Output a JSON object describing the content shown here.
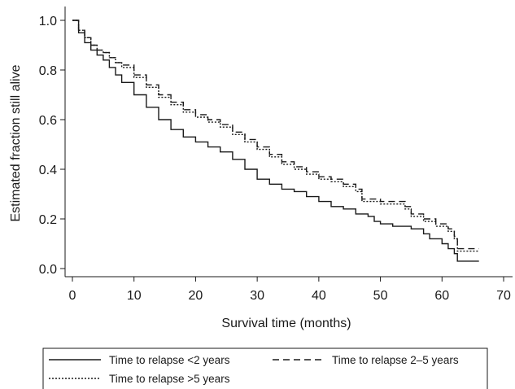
{
  "chart_data": {
    "type": "line",
    "title": "",
    "xlabel": "Survival time (months)",
    "ylabel": "Estimated fraction still alive",
    "xlim": [
      0,
      70
    ],
    "ylim": [
      0.0,
      1.0
    ],
    "x_ticks": [
      "0",
      "10",
      "20",
      "30",
      "40",
      "50",
      "60",
      "70"
    ],
    "y_ticks": [
      "0.0",
      "0.2",
      "0.4",
      "0.6",
      "0.8",
      "1.0"
    ],
    "grid": false,
    "legend_position": "bottom",
    "series": [
      {
        "name": "Time to relapse <2 years",
        "line_style": "solid",
        "color": "#1a1a1a",
        "points": [
          [
            0,
            1.0
          ],
          [
            1,
            0.95
          ],
          [
            2,
            0.91
          ],
          [
            3,
            0.88
          ],
          [
            4,
            0.86
          ],
          [
            5,
            0.84
          ],
          [
            6,
            0.81
          ],
          [
            7,
            0.78
          ],
          [
            8,
            0.75
          ],
          [
            10,
            0.7
          ],
          [
            12,
            0.65
          ],
          [
            14,
            0.6
          ],
          [
            16,
            0.56
          ],
          [
            18,
            0.53
          ],
          [
            20,
            0.51
          ],
          [
            22,
            0.49
          ],
          [
            24,
            0.47
          ],
          [
            26,
            0.44
          ],
          [
            28,
            0.4
          ],
          [
            30,
            0.36
          ],
          [
            32,
            0.34
          ],
          [
            34,
            0.32
          ],
          [
            36,
            0.31
          ],
          [
            38,
            0.29
          ],
          [
            40,
            0.27
          ],
          [
            42,
            0.25
          ],
          [
            44,
            0.24
          ],
          [
            46,
            0.22
          ],
          [
            48,
            0.21
          ],
          [
            49,
            0.19
          ],
          [
            50,
            0.18
          ],
          [
            52,
            0.17
          ],
          [
            55,
            0.16
          ],
          [
            57,
            0.14
          ],
          [
            58,
            0.12
          ],
          [
            60,
            0.1
          ],
          [
            61,
            0.08
          ],
          [
            62,
            0.06
          ],
          [
            62.5,
            0.03
          ],
          [
            66,
            0.03
          ]
        ]
      },
      {
        "name": "Time to relapse 2–5 years",
        "line_style": "dashed",
        "color": "#1a1a1a",
        "points": [
          [
            0,
            1.0
          ],
          [
            1,
            0.96
          ],
          [
            2,
            0.93
          ],
          [
            3,
            0.9
          ],
          [
            4,
            0.88
          ],
          [
            5,
            0.87
          ],
          [
            6,
            0.85
          ],
          [
            7,
            0.83
          ],
          [
            8,
            0.82
          ],
          [
            10,
            0.78
          ],
          [
            12,
            0.74
          ],
          [
            14,
            0.7
          ],
          [
            16,
            0.67
          ],
          [
            18,
            0.64
          ],
          [
            20,
            0.62
          ],
          [
            22,
            0.6
          ],
          [
            24,
            0.58
          ],
          [
            26,
            0.55
          ],
          [
            28,
            0.52
          ],
          [
            30,
            0.49
          ],
          [
            32,
            0.46
          ],
          [
            34,
            0.43
          ],
          [
            36,
            0.41
          ],
          [
            38,
            0.39
          ],
          [
            40,
            0.37
          ],
          [
            42,
            0.36
          ],
          [
            44,
            0.34
          ],
          [
            46,
            0.32
          ],
          [
            47,
            0.28
          ],
          [
            50,
            0.27
          ],
          [
            54,
            0.25
          ],
          [
            55,
            0.22
          ],
          [
            57,
            0.2
          ],
          [
            59,
            0.18
          ],
          [
            61,
            0.16
          ],
          [
            62,
            0.13
          ],
          [
            62.5,
            0.08
          ],
          [
            66,
            0.08
          ]
        ]
      },
      {
        "name": "Time to relapse >5 years",
        "line_style": "dotted",
        "color": "#1a1a1a",
        "points": [
          [
            0,
            1.0
          ],
          [
            1,
            0.96
          ],
          [
            2,
            0.93
          ],
          [
            3,
            0.9
          ],
          [
            4,
            0.88
          ],
          [
            5,
            0.87
          ],
          [
            6,
            0.85
          ],
          [
            7,
            0.83
          ],
          [
            8,
            0.81
          ],
          [
            10,
            0.77
          ],
          [
            12,
            0.73
          ],
          [
            14,
            0.69
          ],
          [
            16,
            0.66
          ],
          [
            18,
            0.63
          ],
          [
            20,
            0.61
          ],
          [
            22,
            0.59
          ],
          [
            24,
            0.57
          ],
          [
            26,
            0.54
          ],
          [
            28,
            0.51
          ],
          [
            30,
            0.48
          ],
          [
            32,
            0.45
          ],
          [
            34,
            0.42
          ],
          [
            36,
            0.4
          ],
          [
            38,
            0.38
          ],
          [
            40,
            0.36
          ],
          [
            42,
            0.35
          ],
          [
            44,
            0.33
          ],
          [
            46,
            0.31
          ],
          [
            47,
            0.27
          ],
          [
            50,
            0.26
          ],
          [
            54,
            0.24
          ],
          [
            55,
            0.21
          ],
          [
            57,
            0.19
          ],
          [
            59,
            0.17
          ],
          [
            61,
            0.15
          ],
          [
            62,
            0.12
          ],
          [
            62.5,
            0.07
          ],
          [
            66,
            0.07
          ]
        ]
      }
    ]
  }
}
